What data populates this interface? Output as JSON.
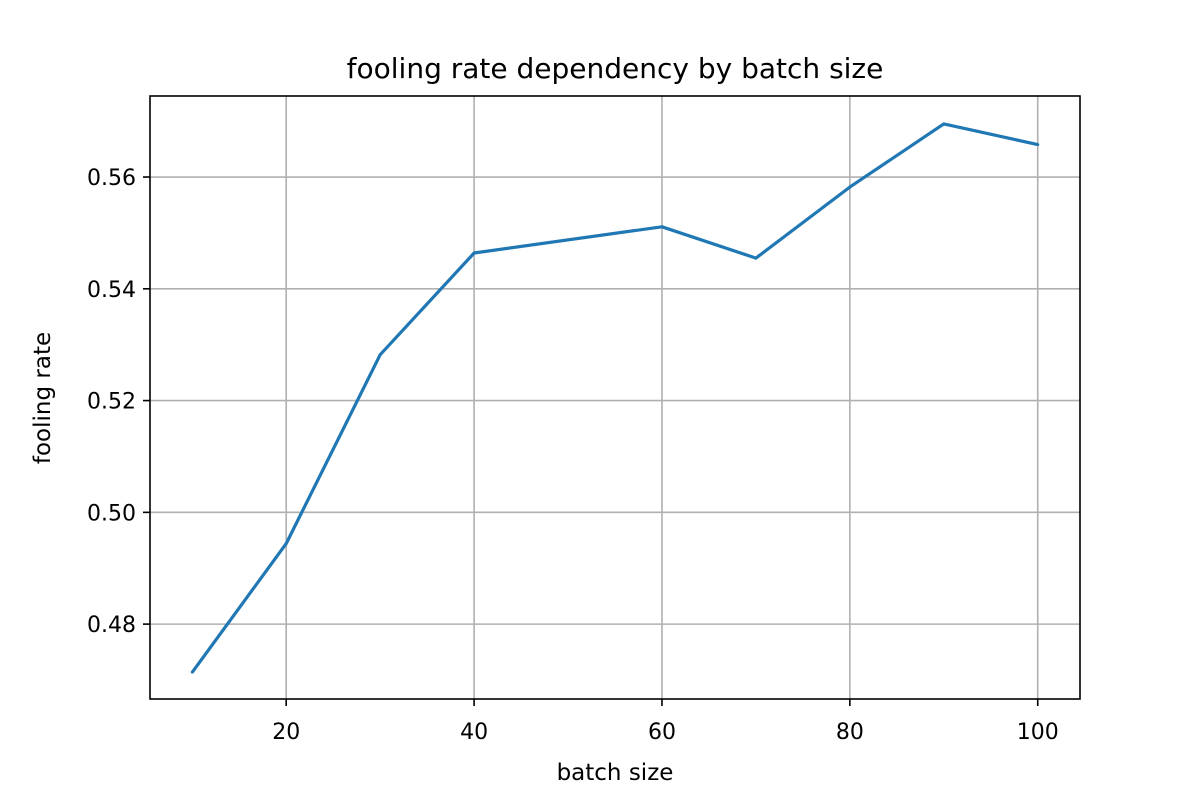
{
  "chart_data": {
    "type": "line",
    "title": "fooling rate dependency by batch size",
    "xlabel": "batch size",
    "ylabel": "fooling rate",
    "xlim": [
      5.5,
      104.5
    ],
    "ylim": [
      0.4666,
      0.5745
    ],
    "xticks": [
      20,
      40,
      60,
      80,
      100
    ],
    "xtick_labels": [
      "20",
      "40",
      "60",
      "80",
      "100"
    ],
    "yticks": [
      0.48,
      0.5,
      0.52,
      0.54,
      0.56
    ],
    "ytick_labels": [
      "0.48",
      "0.50",
      "0.52",
      "0.54",
      "0.56"
    ],
    "grid": true,
    "series": [
      {
        "name": "fooling rate",
        "color": "#1f77b4",
        "x": [
          10,
          20,
          30,
          40,
          60,
          70,
          80,
          90,
          100
        ],
        "y": [
          0.4714,
          0.4944,
          0.5282,
          0.5464,
          0.5511,
          0.5455,
          0.5582,
          0.5695,
          0.5658
        ]
      }
    ]
  }
}
